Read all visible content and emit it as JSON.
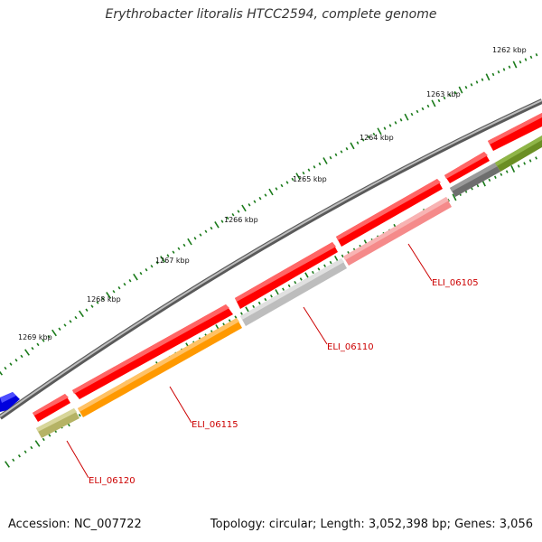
{
  "title": "Erythrobacter litoralis HTCC2594, complete genome",
  "footer": {
    "accession": "Accession: NC_007722",
    "stats": "Topology: circular; Length: 3,052,398 bp; Genes: 3,056"
  },
  "scale": {
    "ticks": [
      "1262 kbp",
      "1263 kbp",
      "1264 kbp",
      "1265 kbp",
      "1266 kbp",
      "1267 kbp",
      "1268 kbp",
      "1269 kbp"
    ]
  },
  "genes": [
    {
      "id": "ELI_06105",
      "label": "ELI_06105",
      "color": "#f58a8a"
    },
    {
      "id": "ELI_06110",
      "label": "ELI_06110",
      "color": "#bdbdbd"
    },
    {
      "id": "ELI_06115",
      "label": "ELI_06115",
      "color": "#ff9900"
    },
    {
      "id": "ELI_06120",
      "label": "ELI_06120",
      "color": "#b5b365"
    }
  ],
  "colors": {
    "cds_red": "#ff0000",
    "gc_skew_green": "#1a7a1a",
    "backbone": "#7a7a7a",
    "feature_blue": "#0000dd",
    "feature_olive": "#6b8e23",
    "feature_gray": "#6e6e6e"
  }
}
